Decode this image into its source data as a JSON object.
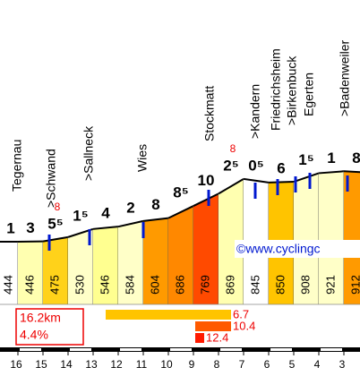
{
  "chart_data": {
    "type": "profile",
    "elevations": [
      444,
      446,
      475,
      530,
      546,
      584,
      604,
      686,
      769,
      869,
      845,
      850,
      908,
      921,
      912
    ],
    "gradients": [
      "1",
      "3",
      "5⁵",
      "1⁵",
      "4",
      "2",
      "8",
      "8⁵",
      "10",
      "2⁵",
      "0⁵",
      "6",
      "1⁵",
      "1",
      "8"
    ],
    "max_gradients": [
      null,
      null,
      "8",
      null,
      null,
      null,
      null,
      null,
      null,
      "8",
      null,
      null,
      null,
      null,
      null
    ],
    "colors": [
      "#ffffff",
      "#ffffb0",
      "#ffd21a",
      "#ffffc8",
      "#ffff90",
      "#ffffc8",
      "#ff9a00",
      "#ff8800",
      "#ff4a00",
      "#ffffb0",
      "#ffffff",
      "#ffc400",
      "#ffffc8",
      "#ffffc8",
      "#ff9a00"
    ],
    "places": [
      "Tegernau",
      ">Schwand",
      ">Sallneck",
      "Wies",
      "Stockmatt",
      ">Kandern",
      "Friedrichsheim",
      ">Birkenbuck",
      "Egerten",
      ">Badenweiler"
    ],
    "credit": "©www.cyclingc",
    "distance": "16.2km",
    "average": "4.4%",
    "distribution": [
      {
        "label": "6.7",
        "color": "#ffc400"
      },
      {
        "label": "10.4",
        "color": "#ff5a00"
      },
      {
        "label": "12.4",
        "color": "#ff1a00"
      }
    ],
    "xticks": [
      16,
      15,
      14,
      13,
      12,
      11,
      10,
      9,
      8,
      7,
      6,
      5,
      4,
      3
    ]
  }
}
